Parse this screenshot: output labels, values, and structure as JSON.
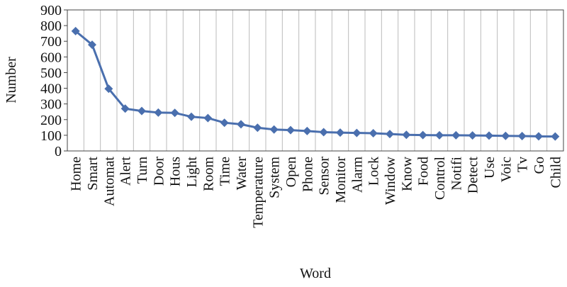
{
  "chart_data": {
    "type": "line",
    "x_label": "Word",
    "y_label": "Number",
    "categories": [
      "Home",
      "Smart",
      "Automat",
      "Alert",
      "Turn",
      "Door",
      "Hous",
      "Light",
      "Room",
      "Time",
      "Water",
      "Temperature",
      "System",
      "Open",
      "Phone",
      "Sensor",
      "Monitor",
      "Alarm",
      "Lock",
      "Window",
      "Know",
      "Food",
      "Control",
      "Notifi",
      "Detect",
      "Use",
      "Voic",
      "Tv",
      "Go",
      "Child"
    ],
    "values": [
      765,
      678,
      397,
      270,
      255,
      245,
      243,
      218,
      210,
      180,
      170,
      148,
      137,
      133,
      127,
      120,
      117,
      115,
      113,
      108,
      103,
      101,
      100,
      100,
      99,
      98,
      96,
      95,
      93,
      92
    ],
    "color": "#4a6fae",
    "ylim": [
      0,
      900
    ],
    "yticks": [
      0,
      100,
      200,
      300,
      400,
      500,
      600,
      700,
      800,
      900
    ],
    "grid": "x"
  }
}
